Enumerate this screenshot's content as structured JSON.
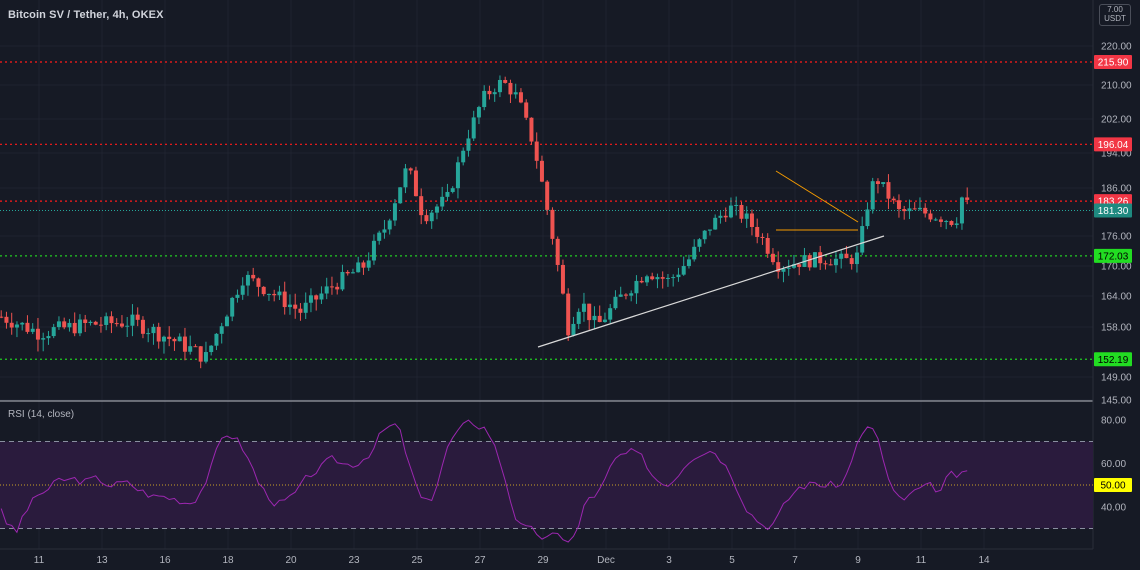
{
  "header": {
    "title": "Bitcoin SV / Tether, 4h, OKEX",
    "currency_top": "7.00",
    "currency_bottom": "USDT"
  },
  "rsi_panel": {
    "title": "RSI (14, close)",
    "ticks": [
      "80.00",
      "60.00",
      "40.00"
    ],
    "midline_value": 50,
    "midline_label": "50.00",
    "upper_band": 70,
    "lower_band": 30
  },
  "colors": {
    "background": "#161a25",
    "up": "#26a69a",
    "down": "#ef5350",
    "red_level": "#ff1a1a",
    "green_level": "#22cc22",
    "rsi_line": "#9c27b0",
    "rsi_band": "#2a1b3d",
    "triangle": "#f59b00",
    "trendline": "#d9d9d9"
  },
  "chart_data": {
    "type": "candlestick",
    "title": "Bitcoin SV / Tether, 4h, OKEX",
    "y_ticks": [
      "220.00",
      "210.00",
      "202.00",
      "194.00",
      "186.00",
      "176.00",
      "170.00",
      "164.00",
      "158.00",
      "149.00",
      "145.00"
    ],
    "x_ticks": [
      "11",
      "13",
      "16",
      "18",
      "20",
      "23",
      "25",
      "27",
      "29",
      "Dec",
      "3",
      "5",
      "7",
      "9",
      "11",
      "14"
    ],
    "levels": [
      {
        "value": 215.9,
        "label": "215.90",
        "style": "resistance"
      },
      {
        "value": 196.04,
        "label": "196.04",
        "style": "resistance"
      },
      {
        "value": 183.26,
        "label": "183.26",
        "style": "resistance"
      },
      {
        "value": 172.03,
        "label": "172.03",
        "style": "support"
      },
      {
        "value": 152.19,
        "label": "152.19",
        "style": "support"
      }
    ],
    "last_price": {
      "value": 181.3,
      "label": "181.30"
    },
    "trendline": {
      "from": {
        "x": "26 Nov",
        "y": 154.5
      },
      "to": {
        "x": "7 Dec",
        "y": 176.2
      }
    },
    "triangle": {
      "upper": [
        {
          "x": "4 Dec",
          "y": 190.5
        },
        {
          "x": "6 Dec",
          "y": 180.0
        }
      ],
      "lower": [
        {
          "x": "4 Dec",
          "y": 177.0
        },
        {
          "x": "6 Dec",
          "y": 177.0
        }
      ]
    }
  }
}
